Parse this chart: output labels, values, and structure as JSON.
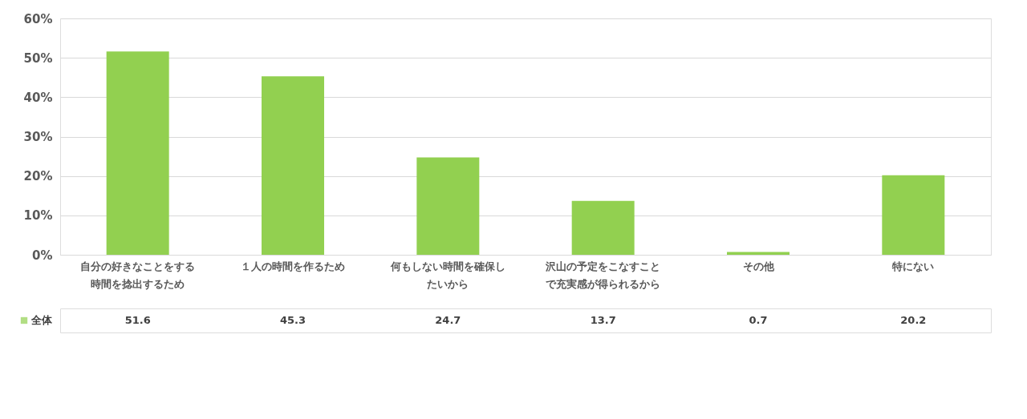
{
  "chart_data": {
    "type": "bar",
    "categories": [
      "自分の好きなことをする時間を捻出するため",
      "１人の時間を作るため",
      "何もしない時間を確保したいから",
      "沢山の予定をこなすことで充実感が得られるから",
      "その他",
      "特にない"
    ],
    "series": [
      {
        "name": "全体",
        "color": "#92d050",
        "values": [
          51.6,
          45.3,
          24.7,
          13.7,
          0.7,
          20.2
        ]
      }
    ],
    "ylim": [
      0,
      60
    ],
    "yticks": [
      {
        "value": 0,
        "label": "0%"
      },
      {
        "value": 10,
        "label": "10%"
      },
      {
        "value": 20,
        "label": "20%"
      },
      {
        "value": 30,
        "label": "30%"
      },
      {
        "value": 40,
        "label": "40%"
      },
      {
        "value": 50,
        "label": "50%"
      },
      {
        "value": 60,
        "label": "60%"
      }
    ],
    "grid": "y",
    "legend": "bottom left",
    "data_labels": true
  }
}
